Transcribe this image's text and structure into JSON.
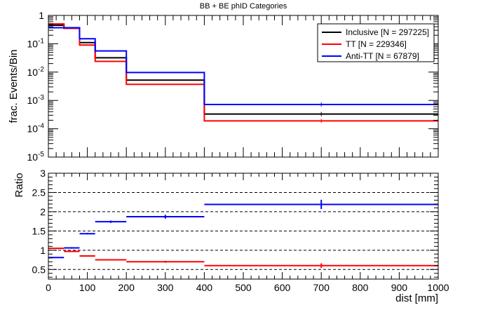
{
  "chart_data": [
    {
      "type": "line",
      "title": "BB + BE phID Categories",
      "ylabel": "frac. Events/Bin",
      "xlabel": "",
      "yscale": "log",
      "ylim": [
        1e-05,
        1
      ],
      "xlim": [
        0,
        1000
      ],
      "y_tick_labels": [
        {
          "base": "10",
          "exp": "-5"
        },
        {
          "base": "10",
          "exp": "-4"
        },
        {
          "base": "10",
          "exp": "-3"
        },
        {
          "base": "10",
          "exp": "-2"
        },
        {
          "base": "10",
          "exp": "-1"
        },
        {
          "base": "1",
          "exp": ""
        }
      ],
      "x_bin_edges": [
        0,
        40,
        80,
        120,
        200,
        400,
        1000
      ],
      "legend_position": "top-right",
      "series": [
        {
          "name": "Inclusive [N = 297225]",
          "color": "#000000",
          "values": [
            0.45,
            0.35,
            0.11,
            0.032,
            0.0052,
            0.00033
          ]
        },
        {
          "name": "TT [N = 229346]",
          "color": "#ff0000",
          "values": [
            0.5,
            0.35,
            0.09,
            0.024,
            0.0037,
            0.00019
          ]
        },
        {
          "name": "Anti-TT [N = 67879]",
          "color": "#0000ff",
          "values": [
            0.37,
            0.37,
            0.15,
            0.056,
            0.0097,
            0.00072
          ]
        }
      ]
    },
    {
      "type": "scatter",
      "title": "",
      "ylabel": "Ratio",
      "xlabel": "dist [mm]",
      "ylim": [
        0.25,
        3
      ],
      "xlim": [
        0,
        1000
      ],
      "y_ticks": [
        "0.5",
        "1",
        "1.5",
        "2",
        "2.5",
        "3"
      ],
      "x_ticks": [
        "0",
        "100",
        "200",
        "300",
        "400",
        "500",
        "600",
        "700",
        "800",
        "900",
        "1000"
      ],
      "grid": "dashed horizontal",
      "x_bin_edges": [
        0,
        40,
        80,
        120,
        200,
        400,
        1000
      ],
      "series": [
        {
          "name": "TT",
          "color": "#ff0000",
          "values": [
            1.05,
            0.97,
            0.85,
            0.75,
            0.7,
            0.6
          ]
        },
        {
          "name": "Anti-TT",
          "color": "#0000ff",
          "values": [
            0.81,
            1.06,
            1.43,
            1.74,
            1.87,
            2.19
          ]
        }
      ]
    }
  ]
}
